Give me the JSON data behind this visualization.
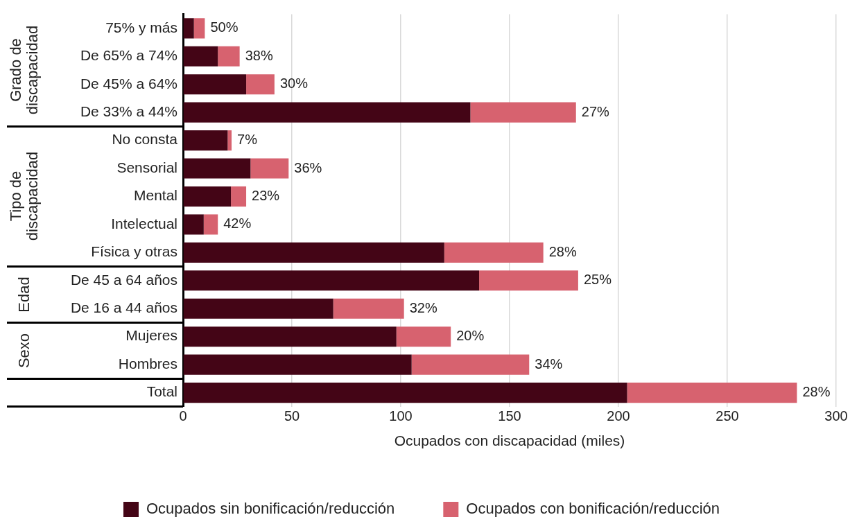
{
  "chart_data": {
    "type": "bar",
    "orientation": "horizontal",
    "stacked": true,
    "xlabel": "Ocupados con discapacidad (miles)",
    "categories": [
      "75% y más",
      "De 65% a 74%",
      "De 45% a 64%",
      "De 33% a 44%",
      "No consta",
      "Sensorial",
      "Mental",
      "Intelectual",
      "Física y otras",
      "De 45 a 64 años",
      "De 16 a 44 años",
      "Mujeres",
      "Hombres",
      "Total"
    ],
    "series": [
      {
        "name": "Ocupados sin bonificación/reducción",
        "color": "#440516",
        "values": [
          5,
          16,
          29,
          132,
          20.5,
          31,
          22,
          9.5,
          120,
          136,
          69,
          98,
          105,
          204
        ]
      },
      {
        "name": "Ocupados con bonificación/reducción",
        "color": "#d7626f",
        "values": [
          5,
          10,
          13,
          48.5,
          1.8,
          17.5,
          7,
          6.5,
          45.5,
          45.5,
          32.5,
          25,
          54,
          78
        ]
      }
    ],
    "annotations": [
      "Grado de discapacidad",
      "Tipo de discapacidad",
      "Edad",
      "Sexo",
      {
        "text": "50%",
        "x": 10,
        "y": "75% y más"
      },
      {
        "text": "38%",
        "x": 26,
        "y": "De 65% a 74%"
      },
      {
        "text": "30%",
        "x": 42,
        "y": "De 45% a 64%"
      },
      {
        "text": "27%",
        "x": 180.5,
        "y": "De 33% a 44%"
      },
      {
        "text": "7%",
        "x": 22.3,
        "y": "No consta"
      },
      {
        "text": "36%",
        "x": 48.5,
        "y": "Sensorial"
      },
      {
        "text": "23%",
        "x": 29,
        "y": "Mental"
      },
      {
        "text": "42%",
        "x": 16,
        "y": "Intelectual"
      },
      {
        "text": "28%",
        "x": 165.5,
        "y": "Física y otras"
      },
      {
        "text": "25%",
        "x": 181.5,
        "y": "De 45 a 64 años"
      },
      {
        "text": "32%",
        "x": 101.5,
        "y": "De 16 a 44 años"
      },
      {
        "text": "20%",
        "x": 123,
        "y": "Mujeres"
      },
      {
        "text": "34%",
        "x": 159,
        "y": "Hombres"
      },
      {
        "text": "28%",
        "x": 282,
        "y": "Total"
      }
    ],
    "xlim": [
      0,
      300
    ],
    "xticks": [
      0,
      50,
      100,
      150,
      200,
      250,
      300
    ],
    "grid": "x",
    "legend": "bottom"
  }
}
